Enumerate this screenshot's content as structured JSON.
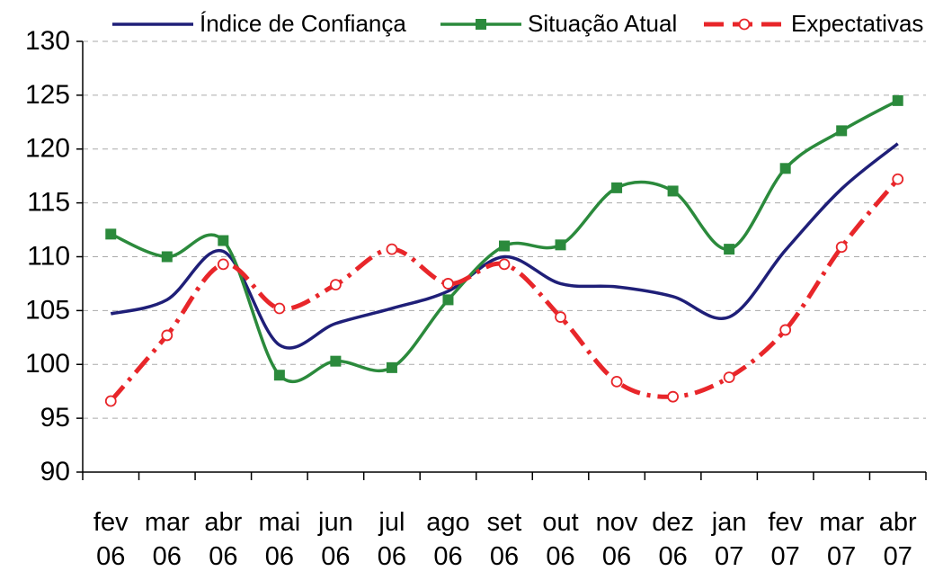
{
  "chart_data": {
    "type": "line",
    "categories": [
      "fev 06",
      "mar 06",
      "abr 06",
      "mai 06",
      "jun 06",
      "jul 06",
      "ago 06",
      "set 06",
      "out 06",
      "nov 06",
      "dez 06",
      "jan 07",
      "fev 07",
      "mar 07",
      "abr 07"
    ],
    "series": [
      {
        "name": "Índice de Confiança",
        "color": "#1f1f78",
        "marker": "none",
        "dash": false,
        "values": [
          104.7,
          106.0,
          110.5,
          101.8,
          103.8,
          105.2,
          106.8,
          110.0,
          107.5,
          107.2,
          106.3,
          104.4,
          110.6,
          116.3,
          120.5
        ]
      },
      {
        "name": "Situação Atual",
        "color": "#2b8a3c",
        "marker": "square",
        "dash": false,
        "values": [
          112.1,
          110.0,
          111.5,
          99.0,
          100.3,
          99.7,
          106.0,
          111.0,
          111.1,
          116.4,
          116.1,
          110.7,
          118.2,
          121.7,
          124.5
        ]
      },
      {
        "name": "Expectativas",
        "color": "#e8262a",
        "marker": "circle",
        "dash": true,
        "values": [
          96.6,
          102.7,
          109.3,
          105.2,
          107.4,
          110.7,
          107.5,
          109.3,
          104.4,
          98.4,
          97.0,
          98.8,
          103.2,
          110.9,
          117.2
        ]
      }
    ],
    "ylim": [
      90,
      130
    ],
    "yticks": [
      90,
      95,
      100,
      105,
      110,
      115,
      120,
      125,
      130
    ],
    "grid": true,
    "legend": "top"
  }
}
